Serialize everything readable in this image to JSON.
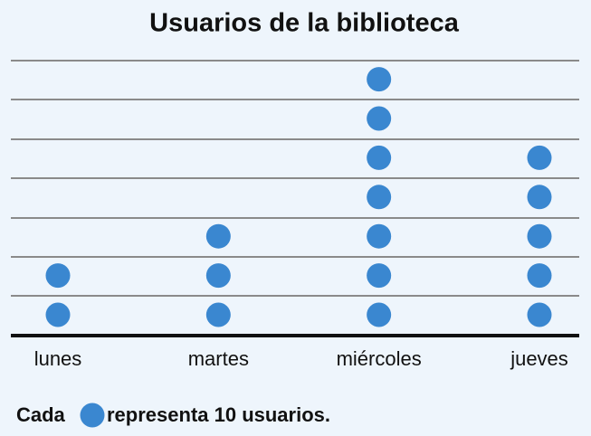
{
  "chart_data": {
    "type": "pictograph",
    "title": "Usuarios de la biblioteca",
    "categories": [
      "lunes",
      "martes",
      "miércoles",
      "jueves"
    ],
    "values": [
      20,
      30,
      70,
      50
    ],
    "color": "#3a87d0",
    "key": {
      "before": "Cada",
      "after": "representa 10 usuarios.",
      "value": 10
    }
  }
}
